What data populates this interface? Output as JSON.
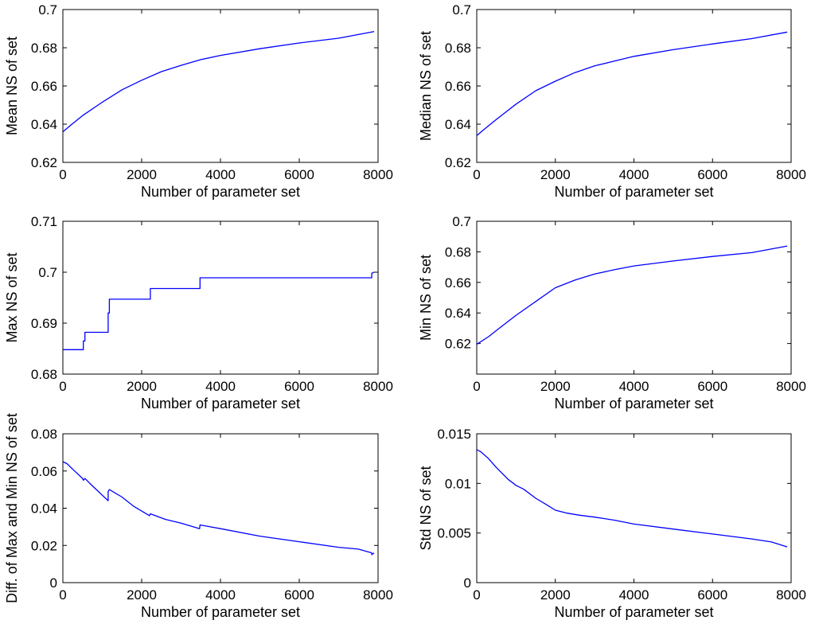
{
  "chart_data": [
    {
      "type": "line",
      "xlabel": "Number of parameter set",
      "ylabel": "Mean NS of set",
      "xlim": [
        0,
        8000
      ],
      "ylim": [
        0.62,
        0.7
      ],
      "xticks": [
        "0",
        "2000",
        "4000",
        "6000",
        "8000"
      ],
      "yticks": [
        "0.62",
        "0.64",
        "0.66",
        "0.68",
        "0.7"
      ],
      "grid": false,
      "line_color": "#0000ff",
      "x": [
        0,
        200,
        500,
        1000,
        1500,
        2000,
        2500,
        3000,
        3500,
        4000,
        5000,
        6000,
        7000,
        7900
      ],
      "y": [
        0.636,
        0.6395,
        0.6445,
        0.6515,
        0.658,
        0.663,
        0.6675,
        0.6708,
        0.6738,
        0.676,
        0.6795,
        0.6825,
        0.685,
        0.6885
      ]
    },
    {
      "type": "line",
      "xlabel": "Number of parameter set",
      "ylabel": "Median NS of set",
      "xlim": [
        0,
        8000
      ],
      "ylim": [
        0.62,
        0.7
      ],
      "xticks": [
        "0",
        "2000",
        "4000",
        "6000",
        "8000"
      ],
      "yticks": [
        "0.62",
        "0.64",
        "0.66",
        "0.68",
        "0.7"
      ],
      "grid": false,
      "line_color": "#0000ff",
      "x": [
        0,
        200,
        500,
        1000,
        1500,
        2000,
        2500,
        3000,
        3500,
        4000,
        5000,
        6000,
        7000,
        7900
      ],
      "y": [
        0.634,
        0.6375,
        0.6425,
        0.6505,
        0.6575,
        0.6625,
        0.667,
        0.6705,
        0.673,
        0.6755,
        0.679,
        0.682,
        0.6848,
        0.6882
      ]
    },
    {
      "type": "line",
      "xlabel": "Number of parameter set",
      "ylabel": "Max NS of set",
      "xlim": [
        0,
        8000
      ],
      "ylim": [
        0.68,
        0.71
      ],
      "xticks": [
        "0",
        "2000",
        "4000",
        "6000",
        "8000"
      ],
      "yticks": [
        "0.68",
        "0.69",
        "0.7",
        "0.71"
      ],
      "grid": false,
      "line_color": "#0000ff",
      "x": [
        0,
        520,
        520,
        560,
        560,
        1150,
        1150,
        1180,
        1180,
        2220,
        2220,
        3480,
        3480,
        7840,
        7840,
        7900
      ],
      "y": [
        0.6848,
        0.6848,
        0.6865,
        0.6865,
        0.6882,
        0.6882,
        0.692,
        0.692,
        0.6947,
        0.6947,
        0.6968,
        0.6968,
        0.6989,
        0.6989,
        0.6998,
        0.7
      ]
    },
    {
      "type": "line",
      "xlabel": "Number of parameter set",
      "ylabel": "Min NS of set",
      "xlim": [
        0,
        8000
      ],
      "ylim": [
        0.6,
        0.7
      ],
      "xticks": [
        "0",
        "2000",
        "4000",
        "6000",
        "8000"
      ],
      "yticks": [
        "0.62",
        "0.64",
        "0.66",
        "0.68",
        "0.7"
      ],
      "grid": false,
      "line_color": "#0000ff",
      "x": [
        0,
        300,
        600,
        1000,
        1500,
        2000,
        2500,
        3000,
        3500,
        4000,
        5000,
        6000,
        7000,
        7900
      ],
      "y": [
        0.6195,
        0.6245,
        0.6305,
        0.6385,
        0.6475,
        0.6565,
        0.6615,
        0.6655,
        0.6683,
        0.6708,
        0.674,
        0.677,
        0.6795,
        0.6838
      ]
    },
    {
      "type": "line",
      "xlabel": "Number of parameter set",
      "ylabel": "Diff. of Max and Min NS of set",
      "xlim": [
        0,
        8000
      ],
      "ylim": [
        0,
        0.08
      ],
      "xticks": [
        "0",
        "2000",
        "4000",
        "6000",
        "8000"
      ],
      "yticks": [
        "0",
        "0.02",
        "0.04",
        "0.06",
        "0.08"
      ],
      "grid": false,
      "line_color": "#0000ff",
      "x": [
        0,
        100,
        300,
        500,
        520,
        560,
        700,
        900,
        1150,
        1150,
        1180,
        1500,
        1800,
        2200,
        2220,
        2600,
        3000,
        3470,
        3480,
        4000,
        5000,
        6000,
        7000,
        7500,
        7840,
        7840,
        7900
      ],
      "y": [
        0.065,
        0.064,
        0.06,
        0.056,
        0.055,
        0.056,
        0.053,
        0.049,
        0.044,
        0.049,
        0.05,
        0.046,
        0.041,
        0.036,
        0.037,
        0.034,
        0.032,
        0.029,
        0.031,
        0.029,
        0.025,
        0.022,
        0.019,
        0.018,
        0.016,
        0.015,
        0.016
      ]
    },
    {
      "type": "line",
      "xlabel": "Number of parameter set",
      "ylabel": "Std NS of set",
      "xlim": [
        0,
        8000
      ],
      "ylim": [
        0,
        0.015
      ],
      "xticks": [
        "0",
        "2000",
        "4000",
        "6000",
        "8000"
      ],
      "yticks": [
        "0",
        "0.005",
        "0.01",
        "0.015"
      ],
      "grid": false,
      "line_color": "#0000ff",
      "x": [
        0,
        100,
        300,
        500,
        800,
        1000,
        1200,
        1500,
        1800,
        2000,
        2300,
        2600,
        3000,
        3500,
        4000,
        5000,
        6000,
        7000,
        7500,
        7900
      ],
      "y": [
        0.0134,
        0.0132,
        0.0125,
        0.0116,
        0.0104,
        0.0098,
        0.0094,
        0.0085,
        0.0078,
        0.0073,
        0.007,
        0.0068,
        0.0066,
        0.0063,
        0.0059,
        0.0054,
        0.0049,
        0.0044,
        0.0041,
        0.0036
      ]
    }
  ]
}
